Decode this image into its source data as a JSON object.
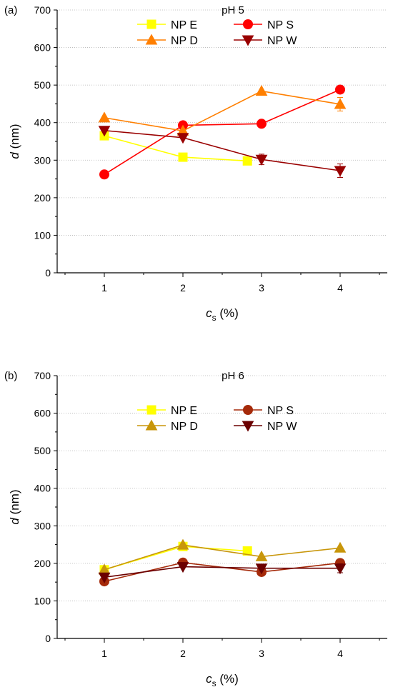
{
  "chart_data": [
    {
      "type": "line",
      "panel_label": "(a)",
      "title": "pH 5",
      "xlabel_main": "c",
      "xlabel_sub": "s",
      "xlabel_unit": " (%)",
      "ylabel_main": "d",
      "ylabel_unit": " (nm)",
      "xlim": [
        0.4,
        4.6
      ],
      "ylim": [
        0,
        700
      ],
      "xticks": [
        1,
        2,
        3,
        4
      ],
      "xtick_labels": [
        "1",
        "2",
        "3",
        "4"
      ],
      "yticks": [
        0,
        100,
        200,
        300,
        400,
        500,
        600,
        700
      ],
      "ytick_labels": [
        "0",
        "100",
        "200",
        "300",
        "400",
        "500",
        "600",
        "700"
      ],
      "grid": true,
      "legend_position": "top",
      "series": [
        {
          "name": "NP E",
          "marker": "square",
          "color": "#ffff00",
          "x": [
            1,
            2,
            2.82
          ],
          "y": [
            365,
            308,
            298
          ],
          "err": [
            0,
            0,
            0
          ]
        },
        {
          "name": "NP S",
          "marker": "circle",
          "color": "#ff0000",
          "x": [
            1,
            2,
            3,
            4
          ],
          "y": [
            262,
            393,
            397,
            488
          ],
          "err": [
            0,
            0,
            0,
            0
          ]
        },
        {
          "name": "NP D",
          "marker": "triangle-up",
          "color": "#ff7f00",
          "x": [
            1,
            2,
            3,
            4
          ],
          "y": [
            413,
            378,
            484,
            449
          ],
          "err": [
            0,
            0,
            0,
            18
          ]
        },
        {
          "name": "NP W",
          "marker": "triangle-down",
          "color": "#990000",
          "x": [
            1,
            2,
            3,
            4
          ],
          "y": [
            379,
            360,
            302,
            272
          ],
          "err": [
            0,
            0,
            14,
            18
          ]
        }
      ]
    },
    {
      "type": "line",
      "panel_label": "(b)",
      "title": "pH 6",
      "xlabel_main": "c",
      "xlabel_sub": "s",
      "xlabel_unit": " (%)",
      "ylabel_main": "d",
      "ylabel_unit": " (nm)",
      "xlim": [
        0.4,
        4.6
      ],
      "ylim": [
        0,
        700
      ],
      "xticks": [
        1,
        2,
        3,
        4
      ],
      "xtick_labels": [
        "1",
        "2",
        "3",
        "4"
      ],
      "yticks": [
        0,
        100,
        200,
        300,
        400,
        500,
        600,
        700
      ],
      "ytick_labels": [
        "0",
        "100",
        "200",
        "300",
        "400",
        "500",
        "600",
        "700"
      ],
      "grid": true,
      "legend_position": "top",
      "series": [
        {
          "name": "NP E",
          "marker": "square",
          "color": "#ffff00",
          "x": [
            1,
            2,
            2.82
          ],
          "y": [
            183,
            245,
            233
          ],
          "err": [
            0,
            0,
            0
          ]
        },
        {
          "name": "NP S",
          "marker": "circle",
          "color": "#a52a0a",
          "x": [
            1,
            2,
            3,
            4
          ],
          "y": [
            152,
            202,
            177,
            201
          ],
          "err": [
            0,
            0,
            0,
            0
          ]
        },
        {
          "name": "NP D",
          "marker": "triangle-up",
          "color": "#c8960a",
          "x": [
            1,
            2,
            3,
            4
          ],
          "y": [
            183,
            249,
            218,
            241
          ],
          "err": [
            0,
            0,
            0,
            0
          ]
        },
        {
          "name": "NP W",
          "marker": "triangle-down",
          "color": "#6b0000",
          "x": [
            1,
            2,
            3,
            4
          ],
          "y": [
            163,
            191,
            187,
            187
          ],
          "err": [
            0,
            0,
            0,
            12
          ]
        }
      ]
    }
  ]
}
